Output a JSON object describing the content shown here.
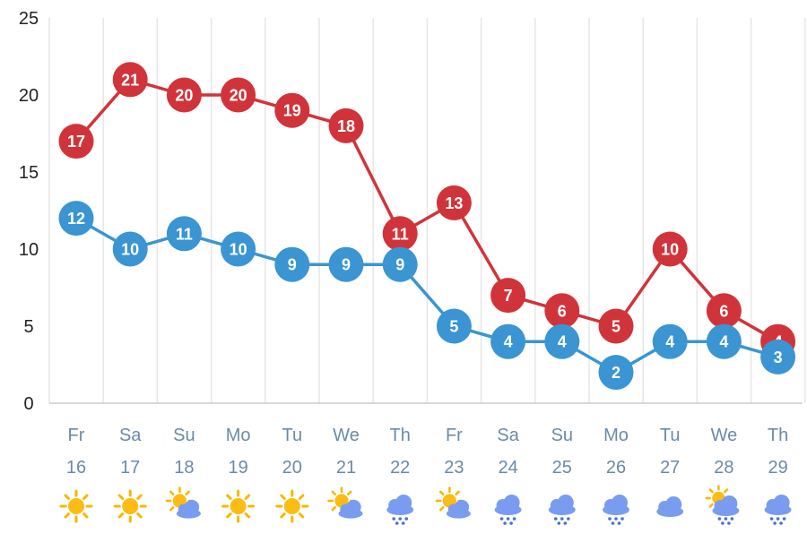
{
  "chart_data": {
    "type": "line",
    "title": "",
    "xlabel": "",
    "ylabel": "",
    "ylim": [
      0,
      25
    ],
    "yticks": [
      0,
      5,
      10,
      15,
      20,
      25
    ],
    "grid": true,
    "days": [
      "Fr",
      "Sa",
      "Su",
      "Mo",
      "Tu",
      "We",
      "Th",
      "Fr",
      "Sa",
      "Su",
      "Mo",
      "Tu",
      "We",
      "Th"
    ],
    "dates": [
      "16",
      "17",
      "18",
      "19",
      "20",
      "21",
      "22",
      "23",
      "24",
      "25",
      "26",
      "27",
      "28",
      "29"
    ],
    "weather_icons": [
      "sun-icon",
      "sun-icon",
      "sun-cloud-icon",
      "sun-icon",
      "sun-icon",
      "sun-cloud-icon",
      "rain-icon",
      "sun-cloud-icon",
      "rain-icon",
      "rain-icon",
      "rain-icon",
      "cloud-icon",
      "sun-rain-icon",
      "rain-icon"
    ],
    "series": [
      {
        "key": "max",
        "color": "#d0343a",
        "values": [
          17,
          21,
          20,
          20,
          19,
          18,
          11,
          13,
          7,
          6,
          5,
          10,
          6,
          4
        ]
      },
      {
        "key": "min",
        "color": "#3a95d2",
        "values": [
          12,
          10,
          11,
          10,
          9,
          9,
          9,
          5,
          4,
          4,
          2,
          4,
          4,
          3
        ]
      }
    ]
  }
}
